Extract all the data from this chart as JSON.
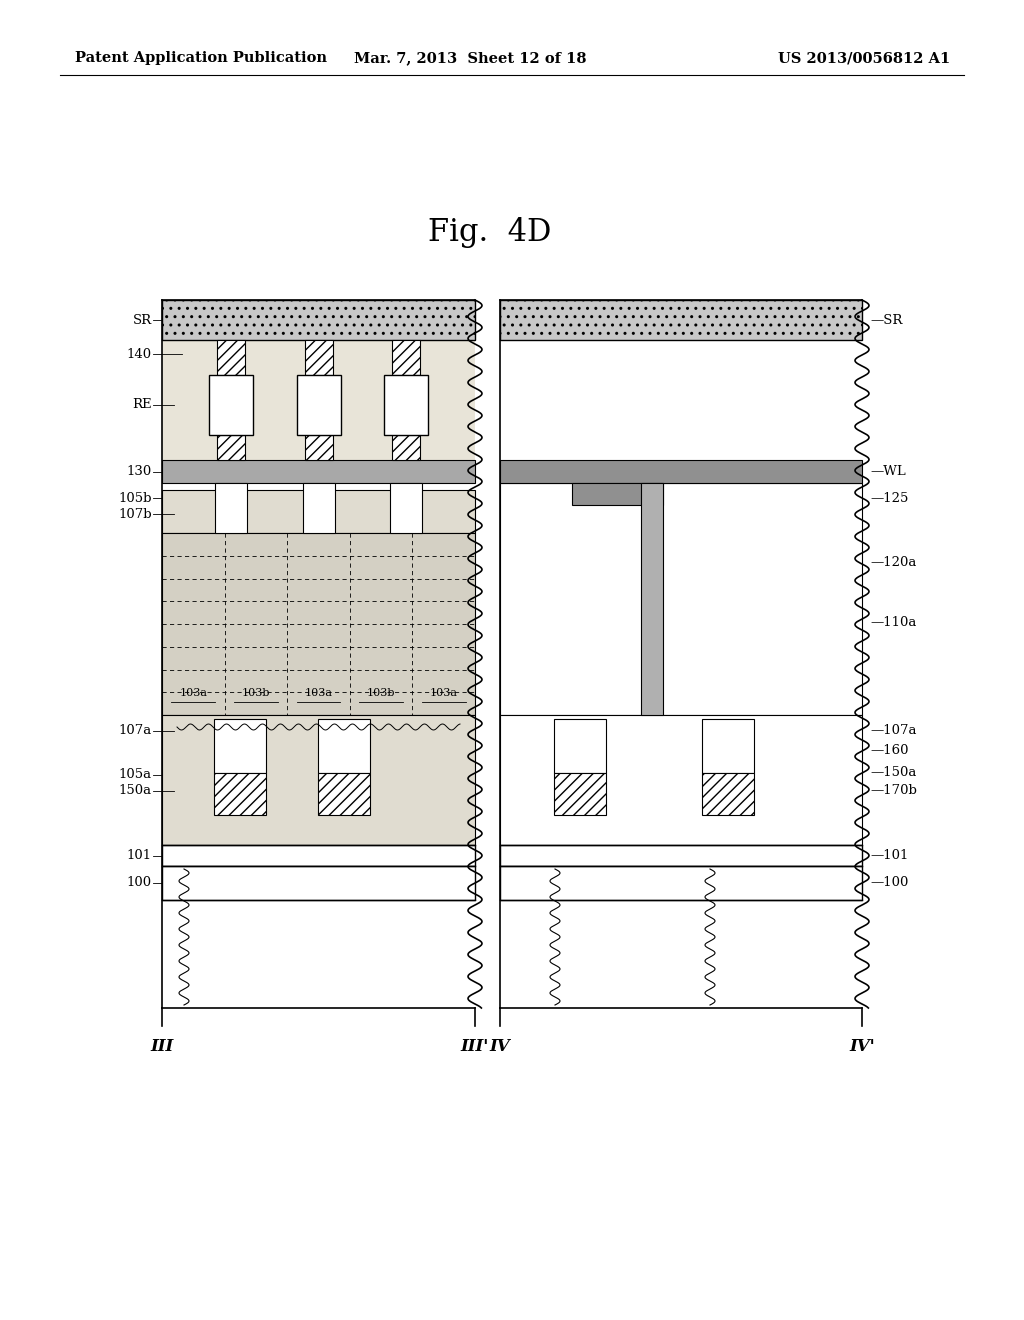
{
  "header_left": "Patent Application Publication",
  "header_mid": "Mar. 7, 2013  Sheet 12 of 18",
  "header_right": "US 2013/0056812 A1",
  "title": "Fig.  4D",
  "bg_color": "#ffffff",
  "colors": {
    "sr_hatch_fc": "#d0d0d0",
    "sr_hatch": "..",
    "pillar_hatch": "///",
    "pillar_fc": "white",
    "body_bg": "#e8e4d8",
    "grid_bg": "#d8d4c8",
    "lower_bg": "#e0dcd0",
    "gray_band": "#a8a8a8",
    "channel_gray": "#b0b0b0",
    "wl_gray": "#909090"
  }
}
